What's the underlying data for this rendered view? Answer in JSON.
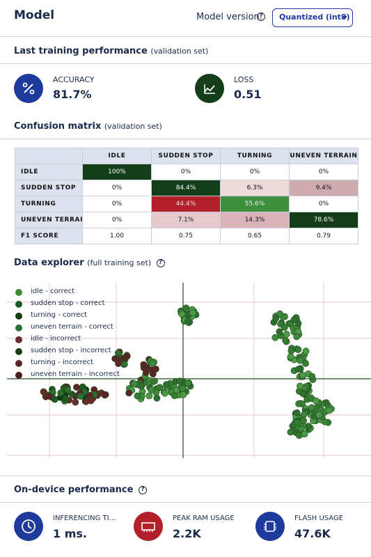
{
  "header": {
    "title": "Model",
    "version_label": "Model version:",
    "version_value": "Quantized (int8)"
  },
  "training": {
    "title": "Last training performance",
    "subtitle": "(validation set)",
    "accuracy": {
      "label": "ACCURACY",
      "value": "81.7%",
      "icon": "percent-icon"
    },
    "loss": {
      "label": "LOSS",
      "value": "0.51",
      "icon": "trending-chart-icon"
    }
  },
  "confusion": {
    "title": "Confusion matrix",
    "subtitle": "(validation set)",
    "columns": [
      "IDLE",
      "SUDDEN STOP",
      "TURNING",
      "UNEVEN TERRAIN"
    ],
    "rows": [
      {
        "label": "IDLE",
        "cells": [
          "100%",
          "0%",
          "0%",
          "0%"
        ]
      },
      {
        "label": "SUDDEN STOP",
        "cells": [
          "0%",
          "84.4%",
          "6.3%",
          "9.4%"
        ]
      },
      {
        "label": "TURNING",
        "cells": [
          "0%",
          "44.4%",
          "55.6%",
          "0%"
        ]
      },
      {
        "label": "UNEVEN TERRAIN",
        "cells": [
          "0%",
          "7.1%",
          "14.3%",
          "78.6%"
        ]
      }
    ],
    "f1": {
      "label": "F1 SCORE",
      "cells": [
        "1.00",
        "0.75",
        "0.65",
        "0.79"
      ]
    }
  },
  "explorer": {
    "title": "Data explorer",
    "subtitle": "(full training set)",
    "legend": [
      {
        "label": "idle - correct",
        "color": "#3e8a3a"
      },
      {
        "label": "sudden stop - correct",
        "color": "#1e5a22"
      },
      {
        "label": "turning - correct",
        "color": "#0f3d14"
      },
      {
        "label": "uneven terrain - correct",
        "color": "#2e6e2e"
      },
      {
        "label": "idle - incorrect",
        "color": "#6b2a2a"
      },
      {
        "label": "sudden stop - incorrect",
        "color": "#183a18"
      },
      {
        "label": "turning - incorrect",
        "color": "#5a2525"
      },
      {
        "label": "uneven terrain - incorrect",
        "color": "#4a2020"
      }
    ]
  },
  "device": {
    "title": "On-device performance",
    "inferencing": {
      "label": "INFERENCING TI...",
      "value": "1 ms.",
      "icon": "clock-icon"
    },
    "ram": {
      "label": "PEAK RAM USAGE",
      "value": "2.2K",
      "icon": "memory-chip-icon"
    },
    "flash": {
      "label": "FLASH USAGE",
      "value": "47.6K",
      "icon": "processor-chip-icon"
    }
  },
  "colors": {
    "navy": "#1a2b4a",
    "blue": "#1e3a9a",
    "dark_green": "#143d19",
    "red": "#b2212a"
  }
}
